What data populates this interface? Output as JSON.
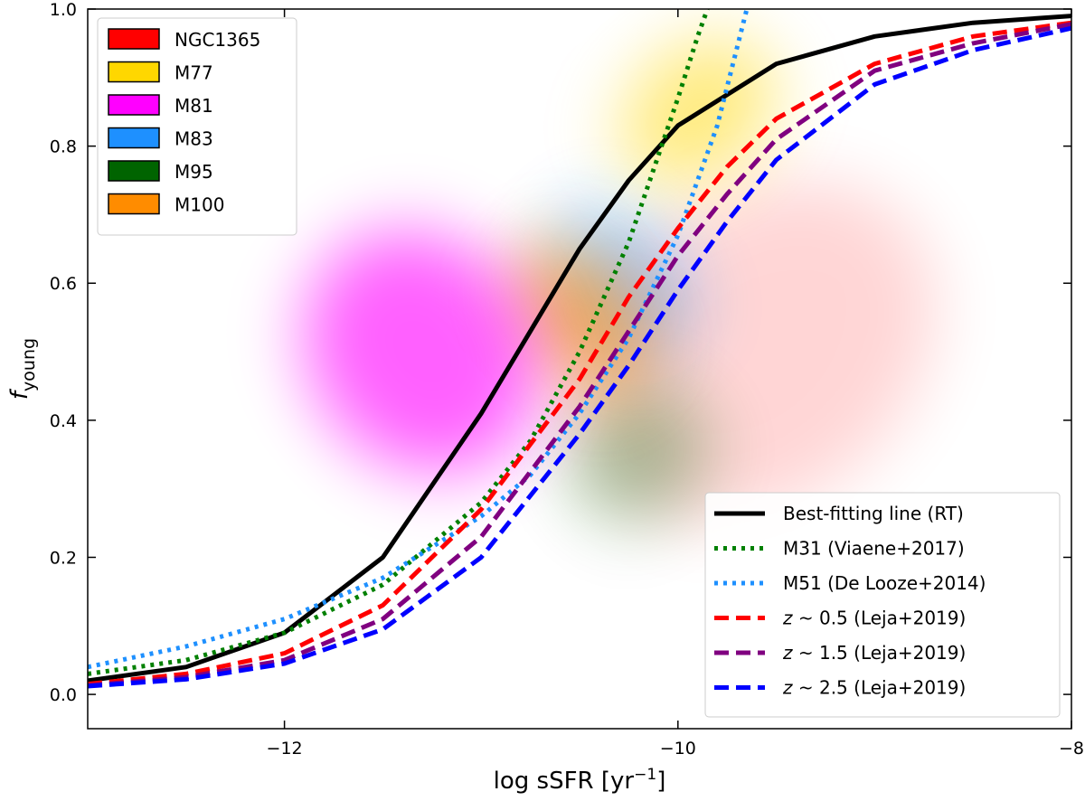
{
  "chart_data": {
    "type": "scatter",
    "title": "",
    "xlabel_main": "log sSFR [yr",
    "xlabel_sup": "−1",
    "xlabel_close": "]",
    "ylabel_main": "f",
    "ylabel_sub": "young",
    "xlim": [
      -13,
      -8
    ],
    "ylim": [
      -0.05,
      1.0
    ],
    "xticks": [
      -12,
      -10,
      -8
    ],
    "xtick_labels": [
      "−12",
      "−10",
      "−8"
    ],
    "yticks": [
      0.0,
      0.2,
      0.4,
      0.6,
      0.8,
      1.0
    ],
    "ytick_labels": [
      "0.0",
      "0.2",
      "0.4",
      "0.6",
      "0.8",
      "1.0"
    ],
    "galaxies": [
      {
        "name": "NGC1365",
        "color": "#ff0000",
        "center_x": -9.6,
        "center_y": 0.5,
        "spread_x": 1.6,
        "spread_y": 0.35
      },
      {
        "name": "M77",
        "color": "#ffd700",
        "center_x": -9.9,
        "center_y": 0.85,
        "spread_x": 0.7,
        "spread_y": 0.15
      },
      {
        "name": "M81",
        "color": "#ff00ff",
        "center_x": -11.3,
        "center_y": 0.5,
        "spread_x": 0.9,
        "spread_y": 0.3
      },
      {
        "name": "M83",
        "color": "#1e90ff",
        "center_x": -10.3,
        "center_y": 0.6,
        "spread_x": 0.5,
        "spread_y": 0.2
      },
      {
        "name": "M95",
        "color": "#006400",
        "center_x": -10.2,
        "center_y": 0.35,
        "spread_x": 0.6,
        "spread_y": 0.15
      },
      {
        "name": "M100",
        "color": "#ff8c00",
        "center_x": -10.5,
        "center_y": 0.55,
        "spread_x": 0.45,
        "spread_y": 0.2
      }
    ],
    "series": [
      {
        "name": "Best-fitting line (RT)",
        "legend_label": "Best-fitting line (RT)",
        "color": "#000000",
        "style": "solid",
        "x": [
          -13,
          -12.5,
          -12,
          -11.5,
          -11,
          -10.75,
          -10.5,
          -10.25,
          -10,
          -9.5,
          -9,
          -8.5,
          -8
        ],
        "y": [
          0.02,
          0.04,
          0.09,
          0.2,
          0.41,
          0.53,
          0.65,
          0.75,
          0.83,
          0.92,
          0.96,
          0.98,
          0.99
        ]
      },
      {
        "name": "M31 (Viaene+2017)",
        "legend_label": "M31 (Viaene+2017)",
        "color": "#008000",
        "style": "dotted",
        "x": [
          -13,
          -12.5,
          -12,
          -11.5,
          -11,
          -10.75,
          -10.5,
          -10.25,
          -10,
          -9.9,
          -9.85
        ],
        "y": [
          0.03,
          0.05,
          0.09,
          0.16,
          0.28,
          0.37,
          0.5,
          0.66,
          0.87,
          0.96,
          1.0
        ]
      },
      {
        "name": "M51 (De Looze+2014)",
        "legend_label": "M51 (De Looze+2014)",
        "color": "#1e90ff",
        "style": "dotted",
        "x": [
          -13,
          -12.5,
          -12,
          -11.5,
          -11,
          -10.75,
          -10.5,
          -10.25,
          -10,
          -9.8,
          -9.65
        ],
        "y": [
          0.04,
          0.07,
          0.11,
          0.17,
          0.26,
          0.32,
          0.41,
          0.52,
          0.67,
          0.83,
          1.0
        ]
      },
      {
        "name": "z~0.5 (Leja+2019)",
        "legend_z": "z",
        "legend_label": " ~ 0.5 (Leja+2019)",
        "color": "#ff0000",
        "style": "dashed",
        "x": [
          -13,
          -12.5,
          -12,
          -11.5,
          -11,
          -10.5,
          -10.25,
          -10,
          -9.75,
          -9.5,
          -9,
          -8.5,
          -8
        ],
        "y": [
          0.015,
          0.03,
          0.06,
          0.13,
          0.27,
          0.46,
          0.58,
          0.68,
          0.77,
          0.84,
          0.92,
          0.96,
          0.98
        ]
      },
      {
        "name": "z~1.5 (Leja+2019)",
        "legend_z": "z",
        "legend_label": " ~ 1.5 (Leja+2019)",
        "color": "#800080",
        "style": "dashed",
        "x": [
          -13,
          -12.5,
          -12,
          -11.5,
          -11,
          -10.5,
          -10.25,
          -10,
          -9.75,
          -9.5,
          -9,
          -8.5,
          -8
        ],
        "y": [
          0.013,
          0.025,
          0.05,
          0.11,
          0.23,
          0.42,
          0.53,
          0.64,
          0.73,
          0.81,
          0.91,
          0.95,
          0.978
        ]
      },
      {
        "name": "z~2.5 (Leja+2019)",
        "legend_z": "z",
        "legend_label": " ~ 2.5 (Leja+2019)",
        "color": "#0000ff",
        "style": "dashed",
        "x": [
          -13,
          -12.5,
          -12,
          -11.5,
          -11,
          -10.5,
          -10.25,
          -10,
          -9.75,
          -9.5,
          -9,
          -8.5,
          -8
        ],
        "y": [
          0.012,
          0.022,
          0.045,
          0.095,
          0.2,
          0.38,
          0.48,
          0.59,
          0.69,
          0.78,
          0.89,
          0.94,
          0.972
        ]
      }
    ],
    "legend_galaxies_position": "top-left",
    "legend_lines_position": "bottom-right"
  }
}
